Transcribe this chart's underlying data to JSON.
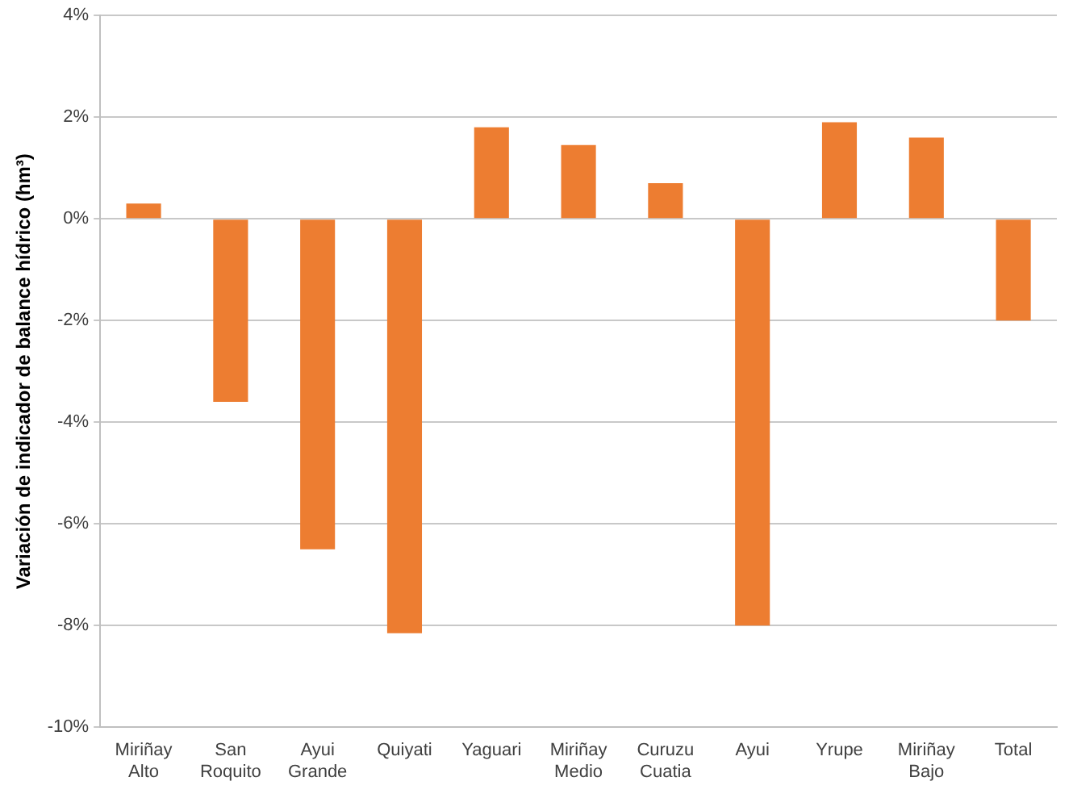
{
  "chart_data": {
    "type": "bar",
    "ylabel": "Variación de indicador de balance hídrico (hm³)",
    "categories": [
      "Miriñay\nAlto",
      "San\nRoquito",
      "Ayui\nGrande",
      "Quiyati",
      "Yaguari",
      "Miriñay\nMedio",
      "Curuzu\nCuatia",
      "Ayui",
      "Yrupe",
      "Miriñay\nBajo",
      "Total"
    ],
    "values": [
      0.3,
      -3.6,
      -6.5,
      -8.15,
      1.8,
      1.45,
      0.7,
      -8.0,
      1.9,
      1.6,
      -2.0
    ],
    "color": "#ed7d31",
    "ylim": [
      -10,
      4
    ],
    "yticks": [
      {
        "value": -10,
        "label": "-10%"
      },
      {
        "value": -8,
        "label": "-8%"
      },
      {
        "value": -6,
        "label": "-6%"
      },
      {
        "value": -4,
        "label": "-4%"
      },
      {
        "value": -2,
        "label": "-2%"
      },
      {
        "value": 0,
        "label": "0%"
      },
      {
        "value": 2,
        "label": "2%"
      },
      {
        "value": 4,
        "label": "4%"
      }
    ],
    "grid": "y",
    "legend": false
  }
}
